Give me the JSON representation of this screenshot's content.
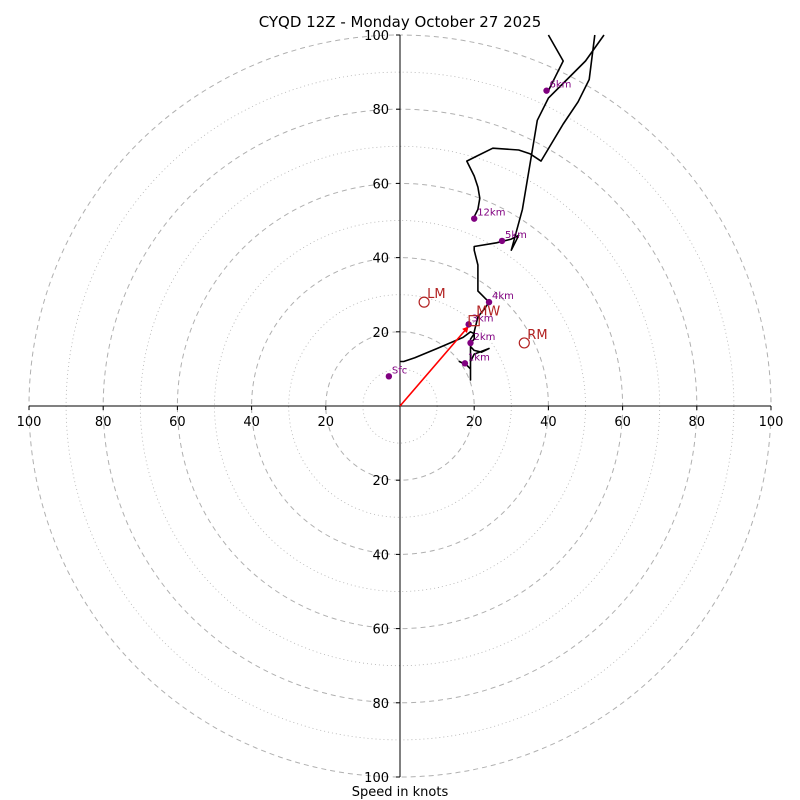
{
  "chart_data": {
    "type": "hodograph",
    "title": "CYQD 12Z - Monday October 27 2025",
    "xlabel": "Speed in knots",
    "units": "knots",
    "ring_values_major": [
      20,
      40,
      60,
      80,
      100
    ],
    "ring_values_minor": [
      10,
      30,
      50,
      70,
      90
    ],
    "axis_range": [
      -100,
      100
    ],
    "tick_labels": {
      "x": [
        "100",
        "80",
        "60",
        "40",
        "20",
        "20",
        "40",
        "60",
        "80",
        "100"
      ],
      "y_top": [
        "100",
        "80",
        "60",
        "40",
        "20"
      ],
      "y_bottom": [
        "20",
        "40",
        "60",
        "80",
        "100"
      ]
    },
    "wind_trace": [
      [
        0,
        12
      ],
      [
        1,
        12
      ],
      [
        4,
        13
      ],
      [
        10,
        15.5
      ],
      [
        17,
        18.5
      ],
      [
        19,
        20
      ],
      [
        20,
        19.5
      ],
      [
        19,
        18
      ],
      [
        19,
        16
      ],
      [
        20,
        15
      ],
      [
        22,
        14.5
      ],
      [
        24,
        15.5
      ],
      [
        20,
        14
      ],
      [
        19,
        12
      ],
      [
        19,
        10
      ],
      [
        18,
        11
      ],
      [
        16,
        12
      ],
      [
        18,
        11
      ],
      [
        19,
        10
      ],
      [
        19,
        7
      ],
      [
        19,
        17
      ],
      [
        20,
        18
      ],
      [
        20,
        20
      ],
      [
        21,
        24
      ],
      [
        23,
        26.5
      ],
      [
        24,
        28
      ],
      [
        23,
        29
      ],
      [
        22,
        30
      ],
      [
        21,
        31
      ],
      [
        21,
        34
      ],
      [
        21,
        38
      ],
      [
        20,
        42
      ],
      [
        20,
        43
      ],
      [
        26,
        44
      ],
      [
        30,
        45
      ],
      [
        32,
        46
      ],
      [
        31,
        44
      ],
      [
        30,
        42
      ],
      [
        33,
        53
      ],
      [
        35,
        65
      ],
      [
        37,
        77
      ],
      [
        40,
        83
      ],
      [
        45,
        88
      ],
      [
        50,
        93
      ],
      [
        55,
        100
      ]
    ],
    "upper_trace": [
      [
        20,
        51
      ],
      [
        21,
        53
      ],
      [
        21.5,
        56
      ],
      [
        21,
        59
      ],
      [
        20,
        62
      ],
      [
        18,
        66
      ],
      [
        20,
        67
      ],
      [
        25,
        69.5
      ],
      [
        32,
        69
      ],
      [
        35,
        68
      ],
      [
        38,
        66
      ],
      [
        44,
        76
      ],
      [
        48,
        82
      ],
      [
        51,
        88
      ],
      [
        52.5,
        100
      ]
    ],
    "top_hook": [
      [
        40,
        85
      ],
      [
        42,
        89
      ],
      [
        44,
        93
      ],
      [
        40,
        100
      ]
    ],
    "height_markers": [
      {
        "label": "Sfc",
        "u": -3,
        "v": 8
      },
      {
        "label": "1km",
        "u": 17.5,
        "v": 11.5
      },
      {
        "label": "2km",
        "u": 19,
        "v": 17
      },
      {
        "label": "3km",
        "u": 18.5,
        "v": 22
      },
      {
        "label": "4km",
        "u": 24,
        "v": 28
      },
      {
        "label": "5km",
        "u": 27.5,
        "v": 44.5
      },
      {
        "label": "6km",
        "u": 39.5,
        "v": 85
      },
      {
        "label": "12km",
        "u": 20,
        "v": 50.5
      }
    ],
    "storm_motion": [
      {
        "label": "LM",
        "u": 6.5,
        "v": 28
      },
      {
        "label": "RM",
        "u": 33.5,
        "v": 17
      },
      {
        "label": "MW",
        "u": 20,
        "v": 23
      }
    ],
    "shear_vector": {
      "from": [
        0,
        0
      ],
      "to": [
        18.5,
        21.5
      ]
    },
    "colors": {
      "trace": "#000000",
      "marker": "#800080",
      "motion": "#b22222",
      "shear": "#ff0000",
      "grid": "#b0b0b0"
    }
  }
}
